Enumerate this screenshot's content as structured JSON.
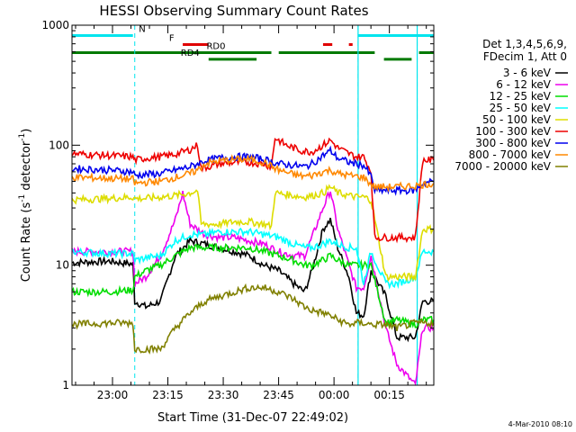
{
  "chart_data": {
    "type": "line",
    "title": "HESSI Observing Summary Count Rates",
    "xlabel": "Start Time (31-Dec-07 22:49:02)",
    "ylabel": "Count Rate (s⁻¹ detector⁻¹)",
    "ylabel_main": "Count Rate (s",
    "ylabel_sup1": "-1",
    "ylabel_mid": " detector",
    "ylabel_sup2": "-1",
    "ylabel_end": ")",
    "x_unit": "minutes since 22:49:02",
    "xlim": [
      0,
      98
    ],
    "ylim": [
      1,
      1000
    ],
    "yscale": "log",
    "x_ticks": [
      {
        "x": 10.97,
        "label": "23:00"
      },
      {
        "x": 25.97,
        "label": "23:15"
      },
      {
        "x": 40.97,
        "label": "23:30"
      },
      {
        "x": 55.97,
        "label": "23:45"
      },
      {
        "x": 70.97,
        "label": "00:00"
      },
      {
        "x": 85.97,
        "label": "00:15"
      }
    ],
    "y_ticks": [
      {
        "y": 1,
        "label": "1"
      },
      {
        "y": 10,
        "label": "10"
      },
      {
        "y": 100,
        "label": "100"
      },
      {
        "y": 1000,
        "label": "1000"
      }
    ],
    "legend_header": [
      "Det 1,3,4,5,6,9,",
      "FDecim 1, Att 0"
    ],
    "legend_position": "top-right outside",
    "footer_date": "4-Mar-2010 08:10",
    "vlines_night": [
      17,
      77.5,
      93.5
    ],
    "vlines_saa": [
      77.5,
      93.5
    ],
    "flags": [
      {
        "label": "N",
        "color": "#00e5ee",
        "level": 820,
        "label_x": 19,
        "segments": [
          [
            0,
            16.5
          ],
          [
            77.5,
            98
          ]
        ]
      },
      {
        "label": "F",
        "color": "#e00000",
        "level": 690,
        "label_x": 27,
        "segments": [
          [
            30,
            37
          ],
          [
            68,
            70.5
          ],
          [
            75,
            76
          ]
        ]
      },
      {
        "label": "RD0",
        "color": "#007a00",
        "level": 590,
        "label_x": 39,
        "segments": [
          [
            0,
            54
          ],
          [
            56,
            82
          ],
          [
            94,
            98
          ]
        ]
      },
      {
        "label": "RD4",
        "color": "#007a00",
        "level": 520,
        "label_x": 32,
        "segments": [
          [
            37,
            50
          ],
          [
            84.5,
            92
          ]
        ]
      }
    ],
    "series": [
      {
        "name": "3 - 6 keV",
        "color": "#000000",
        "points": [
          [
            0,
            10.5
          ],
          [
            10,
            10.8
          ],
          [
            16.5,
            10.2
          ],
          [
            17,
            5
          ],
          [
            20,
            4.5
          ],
          [
            24,
            5
          ],
          [
            28,
            12
          ],
          [
            32,
            16
          ],
          [
            36,
            15
          ],
          [
            40,
            14
          ],
          [
            44,
            13
          ],
          [
            48,
            12
          ],
          [
            52,
            10
          ],
          [
            56,
            9
          ],
          [
            60,
            7
          ],
          [
            63,
            6
          ],
          [
            65,
            9
          ],
          [
            68,
            20
          ],
          [
            70,
            24
          ],
          [
            72,
            14
          ],
          [
            75,
            8
          ],
          [
            77,
            4
          ],
          [
            79,
            3.8
          ],
          [
            81,
            9
          ],
          [
            85,
            5.5
          ],
          [
            88,
            2.5
          ],
          [
            90,
            2.5
          ],
          [
            93,
            2.5
          ],
          [
            95,
            5
          ],
          [
            98,
            5
          ]
        ]
      },
      {
        "name": "6 - 12 keV",
        "color": "#ee00ee",
        "points": [
          [
            0,
            13
          ],
          [
            10,
            13
          ],
          [
            16.5,
            13
          ],
          [
            17,
            7
          ],
          [
            20,
            8
          ],
          [
            24,
            12
          ],
          [
            28,
            24
          ],
          [
            30,
            40
          ],
          [
            32,
            22
          ],
          [
            36,
            18
          ],
          [
            40,
            17
          ],
          [
            44,
            17
          ],
          [
            48,
            16
          ],
          [
            52,
            15
          ],
          [
            56,
            13
          ],
          [
            60,
            12
          ],
          [
            63,
            12
          ],
          [
            65,
            17
          ],
          [
            68,
            30
          ],
          [
            70,
            42
          ],
          [
            72,
            20
          ],
          [
            75,
            10
          ],
          [
            77,
            6.5
          ],
          [
            79,
            6.5
          ],
          [
            81,
            12
          ],
          [
            85,
            3
          ],
          [
            88,
            1.5
          ],
          [
            93,
            1
          ],
          [
            95,
            3
          ],
          [
            98,
            3
          ]
        ]
      },
      {
        "name": "12 - 25 keV",
        "color": "#00dd00",
        "points": [
          [
            0,
            6
          ],
          [
            10,
            6
          ],
          [
            16.5,
            6.2
          ],
          [
            17,
            8
          ],
          [
            20,
            9
          ],
          [
            24,
            10
          ],
          [
            28,
            12
          ],
          [
            32,
            14
          ],
          [
            36,
            14
          ],
          [
            40,
            14
          ],
          [
            44,
            14
          ],
          [
            48,
            14
          ],
          [
            52,
            13
          ],
          [
            56,
            12
          ],
          [
            60,
            11
          ],
          [
            63,
            10
          ],
          [
            65,
            10
          ],
          [
            68,
            11
          ],
          [
            70,
            12
          ],
          [
            72,
            11
          ],
          [
            75,
            10
          ],
          [
            77,
            10
          ],
          [
            79,
            10
          ],
          [
            81,
            10
          ],
          [
            85,
            3.3
          ],
          [
            88,
            3.5
          ],
          [
            93,
            3.2
          ],
          [
            95,
            3.5
          ],
          [
            98,
            3.5
          ]
        ]
      },
      {
        "name": "25 - 50 keV",
        "color": "#00ffff",
        "points": [
          [
            0,
            13
          ],
          [
            10,
            12.5
          ],
          [
            16.5,
            12.5
          ],
          [
            17,
            11
          ],
          [
            20,
            11.5
          ],
          [
            24,
            12
          ],
          [
            28,
            16
          ],
          [
            32,
            18
          ],
          [
            36,
            18
          ],
          [
            40,
            19
          ],
          [
            44,
            19
          ],
          [
            48,
            19
          ],
          [
            52,
            18
          ],
          [
            56,
            17
          ],
          [
            60,
            15
          ],
          [
            63,
            14
          ],
          [
            65,
            14
          ],
          [
            68,
            15
          ],
          [
            70,
            16
          ],
          [
            72,
            15
          ],
          [
            75,
            14
          ],
          [
            77,
            14
          ],
          [
            79,
            7
          ],
          [
            81,
            13
          ],
          [
            85,
            7
          ],
          [
            88,
            7
          ],
          [
            93,
            8
          ],
          [
            95,
            13
          ],
          [
            98,
            13
          ]
        ]
      },
      {
        "name": "50 - 100 keV",
        "color": "#dddd00",
        "points": [
          [
            0,
            35
          ],
          [
            10,
            36
          ],
          [
            16.5,
            37
          ],
          [
            17,
            36
          ],
          [
            20,
            36
          ],
          [
            24,
            37
          ],
          [
            28,
            38
          ],
          [
            32,
            40
          ],
          [
            34,
            42
          ],
          [
            35,
            22
          ],
          [
            40,
            22
          ],
          [
            44,
            23
          ],
          [
            48,
            23
          ],
          [
            52,
            22
          ],
          [
            54,
            21
          ],
          [
            55,
            40
          ],
          [
            60,
            38
          ],
          [
            63,
            37
          ],
          [
            65,
            38
          ],
          [
            68,
            40
          ],
          [
            70,
            45
          ],
          [
            72,
            40
          ],
          [
            75,
            38
          ],
          [
            77,
            37
          ],
          [
            79,
            37
          ],
          [
            81,
            35
          ],
          [
            85,
            8
          ],
          [
            88,
            8
          ],
          [
            93,
            8
          ],
          [
            95,
            20
          ],
          [
            98,
            20
          ]
        ]
      },
      {
        "name": "100 - 300 keV",
        "color": "#ee0000",
        "points": [
          [
            0,
            85
          ],
          [
            10,
            82
          ],
          [
            16.5,
            80
          ],
          [
            17,
            75
          ],
          [
            20,
            78
          ],
          [
            24,
            80
          ],
          [
            28,
            84
          ],
          [
            32,
            92
          ],
          [
            34,
            100
          ],
          [
            35,
            64
          ],
          [
            40,
            70
          ],
          [
            44,
            72
          ],
          [
            48,
            72
          ],
          [
            52,
            70
          ],
          [
            54,
            66
          ],
          [
            55,
            115
          ],
          [
            58,
            100
          ],
          [
            62,
            90
          ],
          [
            65,
            88
          ],
          [
            68,
            100
          ],
          [
            70,
            110
          ],
          [
            72,
            95
          ],
          [
            75,
            85
          ],
          [
            77,
            80
          ],
          [
            79,
            80
          ],
          [
            81,
            60
          ],
          [
            82,
            17
          ],
          [
            85,
            17
          ],
          [
            88,
            17
          ],
          [
            93,
            17
          ],
          [
            95,
            75
          ],
          [
            98,
            75
          ]
        ]
      },
      {
        "name": "300 - 800 keV",
        "color": "#0000ee",
        "points": [
          [
            0,
            64
          ],
          [
            10,
            62
          ],
          [
            16.5,
            60
          ],
          [
            17,
            56
          ],
          [
            20,
            57
          ],
          [
            24,
            58
          ],
          [
            28,
            62
          ],
          [
            32,
            66
          ],
          [
            34,
            70
          ],
          [
            36,
            74
          ],
          [
            40,
            78
          ],
          [
            44,
            80
          ],
          [
            48,
            80
          ],
          [
            52,
            76
          ],
          [
            56,
            70
          ],
          [
            60,
            68
          ],
          [
            63,
            66
          ],
          [
            65,
            70
          ],
          [
            68,
            82
          ],
          [
            70,
            90
          ],
          [
            72,
            78
          ],
          [
            75,
            72
          ],
          [
            77,
            70
          ],
          [
            79,
            68
          ],
          [
            81,
            55
          ],
          [
            82,
            42
          ],
          [
            88,
            42
          ],
          [
            93,
            42
          ],
          [
            95,
            48
          ],
          [
            98,
            50
          ]
        ]
      },
      {
        "name": "800 - 7000 keV",
        "color": "#ff8800",
        "points": [
          [
            0,
            54
          ],
          [
            10,
            53
          ],
          [
            16.5,
            52
          ],
          [
            17,
            48
          ],
          [
            20,
            49
          ],
          [
            24,
            50
          ],
          [
            28,
            54
          ],
          [
            32,
            58
          ],
          [
            34,
            62
          ],
          [
            36,
            70
          ],
          [
            40,
            74
          ],
          [
            44,
            76
          ],
          [
            48,
            76
          ],
          [
            52,
            72
          ],
          [
            56,
            62
          ],
          [
            60,
            57
          ],
          [
            63,
            55
          ],
          [
            65,
            56
          ],
          [
            68,
            60
          ],
          [
            70,
            62
          ],
          [
            72,
            58
          ],
          [
            75,
            56
          ],
          [
            77,
            55
          ],
          [
            79,
            54
          ],
          [
            81,
            47
          ],
          [
            82,
            45
          ],
          [
            88,
            45
          ],
          [
            93,
            46
          ],
          [
            95,
            47
          ],
          [
            98,
            48
          ]
        ]
      },
      {
        "name": "7000 - 20000 keV",
        "color": "#808000",
        "points": [
          [
            0,
            3.2
          ],
          [
            10,
            3.3
          ],
          [
            16.5,
            3.3
          ],
          [
            17,
            2
          ],
          [
            20,
            2
          ],
          [
            24,
            2
          ],
          [
            28,
            3
          ],
          [
            32,
            4
          ],
          [
            36,
            5
          ],
          [
            40,
            5.5
          ],
          [
            44,
            6
          ],
          [
            48,
            6.5
          ],
          [
            52,
            6.5
          ],
          [
            56,
            6
          ],
          [
            60,
            5.2
          ],
          [
            63,
            4.5
          ],
          [
            65,
            4.2
          ],
          [
            68,
            4
          ],
          [
            70,
            3.8
          ],
          [
            72,
            3.5
          ],
          [
            75,
            3.2
          ],
          [
            77,
            3.3
          ],
          [
            79,
            3.3
          ],
          [
            81,
            3.2
          ],
          [
            85,
            3.2
          ],
          [
            88,
            3
          ],
          [
            93,
            3.3
          ],
          [
            95,
            3.3
          ],
          [
            98,
            3.3
          ]
        ]
      }
    ]
  }
}
